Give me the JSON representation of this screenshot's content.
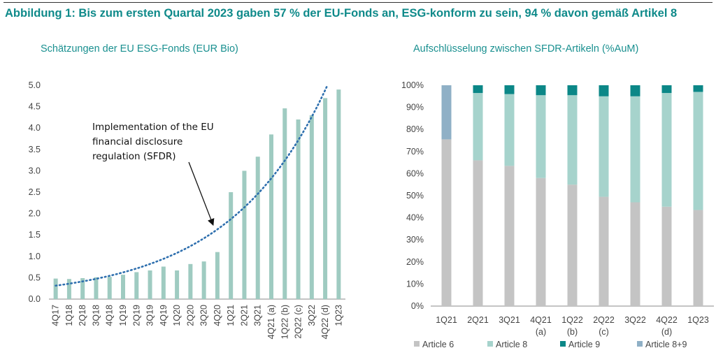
{
  "header": {
    "headline": "Abbildung 1: Bis zum ersten Quartal 2023 gaben 57 % der EU-Fonds an, ESG-konform zu sein, 94 % davon gemäß Artikel 8"
  },
  "colors": {
    "accent": "#0f8a8a",
    "bar_left": "#9fcbc1",
    "trend": "#2e6fae",
    "article6": "#c4c4c4",
    "article8": "#a6d3cc",
    "article9": "#0b8787",
    "article89": "#8fb0c6"
  },
  "chart_data": [
    {
      "type": "bar",
      "title": "Schätzungen der EU ESG-Fonds (EUR Bio)",
      "categories": [
        "4Q17",
        "1Q18",
        "2Q18",
        "3Q18",
        "4Q18",
        "1Q19",
        "2Q19",
        "3Q19",
        "4Q19",
        "1Q20",
        "2Q20",
        "3Q20",
        "4Q20",
        "1Q21",
        "2Q21",
        "3Q21",
        "4Q21 (a)",
        "1Q22 (b)",
        "2Q22 (c)",
        "3Q22",
        "4Q22 (d)",
        "1Q23"
      ],
      "values": [
        0.48,
        0.47,
        0.49,
        0.51,
        0.52,
        0.57,
        0.63,
        0.67,
        0.76,
        0.67,
        0.82,
        0.88,
        1.1,
        2.5,
        3.0,
        3.33,
        3.85,
        4.46,
        4.2,
        4.3,
        4.7,
        4.9
      ],
      "yticks": [
        "0.0",
        "0.5",
        "1.0",
        "1.5",
        "2.0",
        "2.5",
        "3.0",
        "3.5",
        "4.0",
        "4.5",
        "5.0"
      ],
      "ylim": [
        0,
        5
      ],
      "trendline": "exponential",
      "annotation": {
        "lines": [
          "Implementation of the EU",
          "financial disclosure",
          "regulation (SFDR)"
        ],
        "points_to": "4Q20"
      }
    },
    {
      "type": "stacked_bar",
      "title": "Aufschlüsselung zwischen SFDR-Artikeln (%AuM)",
      "categories": [
        "1Q21",
        "2Q21",
        "3Q21",
        "4Q21",
        "1Q22",
        "2Q22",
        "3Q22",
        "4Q22",
        "1Q23"
      ],
      "category_sublabels": [
        "",
        "",
        "",
        "(a)",
        "(b)",
        "(c)",
        "",
        "(d)",
        ""
      ],
      "yticks": [
        "0%",
        "10%",
        "20%",
        "30%",
        "40%",
        "50%",
        "60%",
        "70%",
        "80%",
        "90%",
        "100%"
      ],
      "ylim": [
        0,
        100
      ],
      "series": [
        {
          "name": "Article 6",
          "values": [
            75.5,
            66,
            63.5,
            58,
            55,
            49.5,
            47,
            45,
            43.5
          ]
        },
        {
          "name": "Article 8",
          "values": [
            0,
            30.5,
            32.5,
            37.5,
            40.5,
            45.5,
            48,
            51.5,
            53.5
          ]
        },
        {
          "name": "Article 9",
          "values": [
            0,
            3.5,
            4,
            4.5,
            4.5,
            5,
            5,
            3.5,
            3
          ]
        },
        {
          "name": "Article 8+9",
          "values": [
            24.5,
            0,
            0,
            0,
            0,
            0,
            0,
            0,
            0
          ]
        }
      ]
    }
  ]
}
